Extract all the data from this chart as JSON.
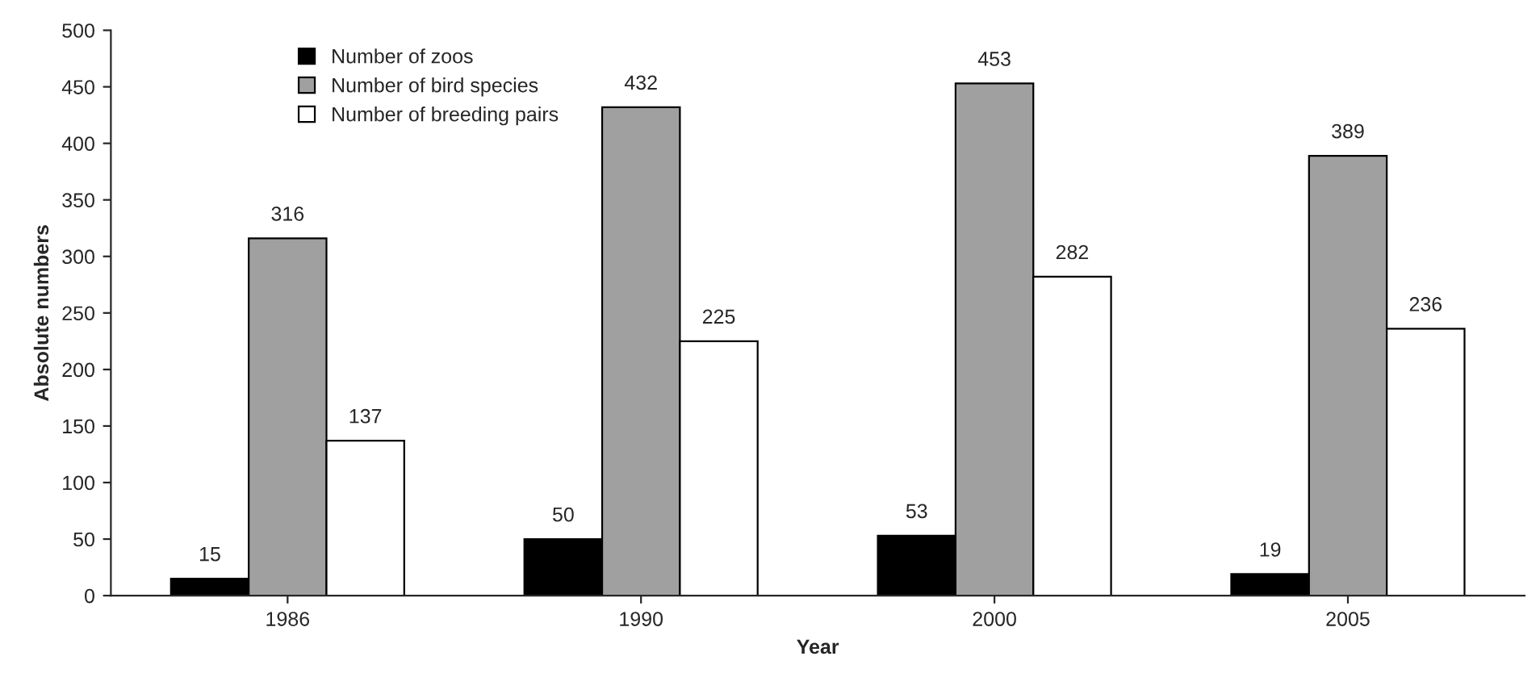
{
  "chart_data": {
    "type": "bar",
    "xlabel": "Year",
    "ylabel": "Absolute numbers",
    "categories": [
      "1986",
      "1990",
      "2000",
      "2005"
    ],
    "series": [
      {
        "name": "Number of zoos",
        "color": "#000000",
        "values": [
          15,
          50,
          53,
          19
        ]
      },
      {
        "name": "Number of bird species",
        "color": "#a0a0a0",
        "values": [
          316,
          432,
          453,
          389
        ]
      },
      {
        "name": "Number of breeding pairs",
        "color": "#ffffff",
        "values": [
          137,
          225,
          282,
          236
        ]
      }
    ],
    "ylim": [
      0,
      500
    ],
    "yticks": [
      0,
      50,
      100,
      150,
      200,
      250,
      300,
      350,
      400,
      450,
      500
    ],
    "data_labels": true,
    "legend": "top left",
    "grid": false
  }
}
